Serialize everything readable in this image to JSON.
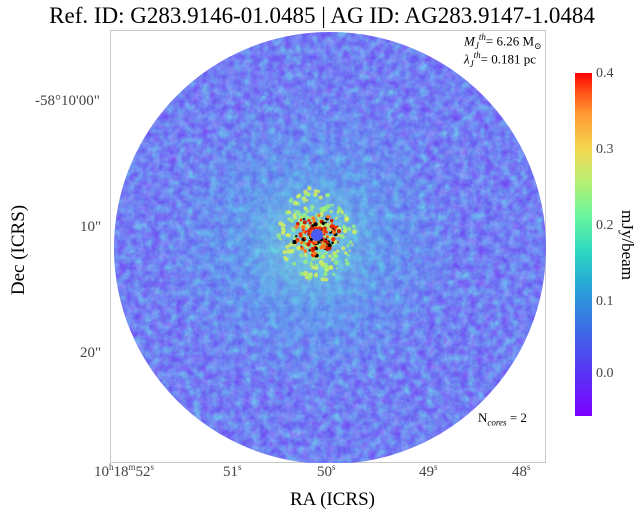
{
  "title": "Ref. ID: G283.9146-01.0485 | AG ID: AG283.9147-1.0484",
  "axes": {
    "xlabel": "RA (ICRS)",
    "ylabel": "Dec (ICRS)",
    "yticks": [
      "-58°10'00\"",
      "10\"",
      "20\""
    ],
    "xticks": [
      {
        "h": "10",
        "m": "18",
        "s": "52"
      },
      {
        "s": "51"
      },
      {
        "s": "50"
      },
      {
        "s": "49"
      },
      {
        "s": "48"
      }
    ]
  },
  "annotations": {
    "mass_symbol": "M",
    "mass_sub": "J",
    "mass_sup": "th",
    "mass_value": "= 6.26 M",
    "mass_unit_symbol": "⊙",
    "lambda_symbol": "λ",
    "lambda_sub": "J",
    "lambda_sup": "th",
    "lambda_value": "= 0.181 pc",
    "ncores_label": "N",
    "ncores_sub": "cores",
    "ncores_value": " = 2"
  },
  "colorbar": {
    "label": "mJy/beam",
    "ticks": [
      "0.4",
      "0.3",
      "0.2",
      "0.1",
      "0.0"
    ],
    "min": -0.05,
    "max": 0.4,
    "colors": [
      "#7b00ff",
      "#3c6ae6",
      "#2ed8c0",
      "#b4f073",
      "#ff9a33",
      "#ff0000"
    ]
  },
  "map": {
    "background_color": "#6a3ff3",
    "texture_colors": [
      "#7a2cf6",
      "#5f55f0",
      "#4a7ee8",
      "#3aa8de",
      "#2fd0cb"
    ],
    "hot_colors": [
      "#ff2a00",
      "#c81e00",
      "#000000",
      "#ff7a1a"
    ],
    "core_count": 2
  }
}
